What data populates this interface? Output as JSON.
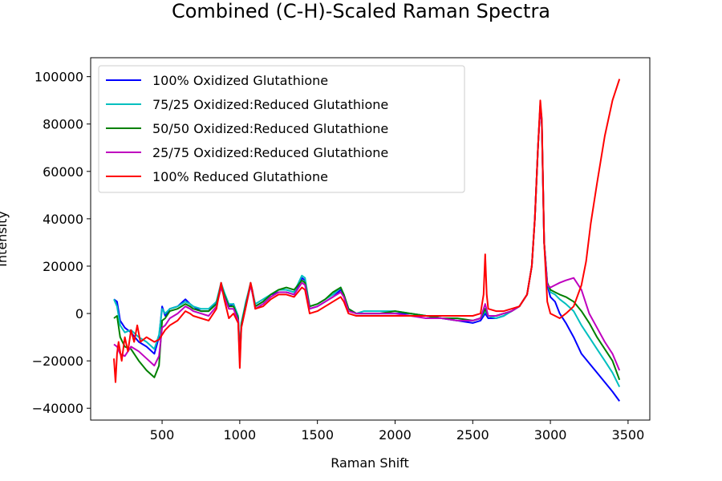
{
  "chart_data": {
    "type": "line",
    "title": "Combined (C-H)-Scaled Raman Spectra",
    "xlabel": "Raman Shift",
    "ylabel": "Intensity",
    "xlim": [
      40,
      3640
    ],
    "ylim": [
      -45000,
      108000
    ],
    "xticks": [
      500,
      1000,
      1500,
      2000,
      2500,
      3000,
      3500
    ],
    "yticks": [
      -40000,
      -20000,
      0,
      20000,
      40000,
      60000,
      80000,
      100000
    ],
    "xtick_labels": [
      "500",
      "1000",
      "1500",
      "2000",
      "2500",
      "3000",
      "3500"
    ],
    "ytick_labels": [
      "−40000",
      "−20000",
      "0",
      "20000",
      "40000",
      "60000",
      "80000",
      "100000"
    ],
    "grid": false,
    "legend_position": "top-left",
    "series": [
      {
        "name": "100% Oxidized Glutathione",
        "color": "#0000ff",
        "x": [
          190,
          210,
          230,
          260,
          300,
          350,
          400,
          450,
          480,
          500,
          520,
          550,
          600,
          650,
          680,
          700,
          750,
          800,
          850,
          880,
          900,
          930,
          960,
          990,
          1000,
          1010,
          1040,
          1070,
          1080,
          1100,
          1150,
          1200,
          1250,
          1300,
          1350,
          1400,
          1420,
          1450,
          1500,
          1550,
          1600,
          1650,
          1670,
          1700,
          1750,
          1800,
          1900,
          2000,
          2100,
          2200,
          2300,
          2400,
          2500,
          2550,
          2580,
          2600,
          2650,
          2700,
          2750,
          2800,
          2850,
          2880,
          2900,
          2920,
          2935,
          2945,
          2960,
          2980,
          3000,
          3030,
          3060,
          3100,
          3150,
          3200,
          3250,
          3300,
          3350,
          3400,
          3445
        ],
        "y": [
          6000,
          5000,
          -3000,
          -6000,
          -8000,
          -12000,
          -14000,
          -17000,
          -10000,
          3000,
          -1000,
          2000,
          3000,
          6000,
          4000,
          3000,
          1000,
          1000,
          5000,
          11000,
          8000,
          3000,
          4000,
          -2000,
          -18000,
          -5000,
          5000,
          12000,
          10000,
          3000,
          5000,
          8000,
          9000,
          9000,
          8000,
          15000,
          14000,
          2000,
          3000,
          5000,
          7000,
          10000,
          8000,
          2000,
          0,
          0,
          0,
          0,
          0,
          -1000,
          -2000,
          -3000,
          -4000,
          -3000,
          0,
          -2000,
          -2000,
          -1000,
          1000,
          3000,
          8000,
          20000,
          40000,
          70000,
          88000,
          80000,
          30000,
          12000,
          7000,
          5000,
          0,
          -4000,
          -10000,
          -17000,
          -21000,
          -25000,
          -29000,
          -33000,
          -37000
        ]
      },
      {
        "name": "75/25 Oxidized:Reduced Glutathione",
        "color": "#00bfbf",
        "x": [
          190,
          210,
          230,
          260,
          300,
          350,
          400,
          450,
          480,
          500,
          520,
          550,
          600,
          650,
          680,
          700,
          750,
          800,
          850,
          880,
          900,
          930,
          960,
          990,
          1000,
          1010,
          1040,
          1070,
          1080,
          1100,
          1150,
          1200,
          1250,
          1300,
          1350,
          1400,
          1420,
          1450,
          1500,
          1550,
          1600,
          1650,
          1670,
          1700,
          1750,
          1800,
          1900,
          2000,
          2100,
          2200,
          2300,
          2400,
          2500,
          2550,
          2580,
          2600,
          2650,
          2700,
          2750,
          2800,
          2850,
          2880,
          2900,
          2920,
          2935,
          2945,
          2960,
          2980,
          3000,
          3030,
          3060,
          3100,
          3150,
          3200,
          3250,
          3300,
          3350,
          3400,
          3445
        ],
        "y": [
          6000,
          3000,
          -5000,
          -8000,
          -7000,
          -10000,
          -12000,
          -15000,
          -9000,
          2000,
          0,
          2000,
          3000,
          5000,
          4000,
          3000,
          2000,
          2000,
          5000,
          13000,
          9000,
          4000,
          4000,
          -1000,
          -17000,
          -4000,
          5000,
          13000,
          10000,
          4000,
          6000,
          8000,
          10000,
          10000,
          9000,
          16000,
          15000,
          3000,
          4000,
          6000,
          8000,
          11000,
          8000,
          2000,
          0,
          1000,
          1000,
          1000,
          0,
          -1000,
          -2000,
          -3000,
          -3000,
          -2000,
          1000,
          -1000,
          -2000,
          -1000,
          1000,
          3000,
          8000,
          20000,
          40000,
          70000,
          88000,
          82000,
          30000,
          13000,
          9000,
          8000,
          6000,
          4000,
          1000,
          -5000,
          -10000,
          -15000,
          -20000,
          -25000,
          -31000
        ]
      },
      {
        "name": "50/50 Oxidized:Reduced Glutathione",
        "color": "#008000",
        "x": [
          190,
          210,
          230,
          260,
          300,
          350,
          400,
          450,
          480,
          500,
          520,
          550,
          600,
          650,
          680,
          700,
          750,
          800,
          850,
          880,
          900,
          930,
          960,
          990,
          1000,
          1010,
          1040,
          1070,
          1080,
          1100,
          1150,
          1200,
          1250,
          1300,
          1350,
          1400,
          1420,
          1450,
          1500,
          1550,
          1600,
          1650,
          1670,
          1700,
          1750,
          1800,
          1900,
          2000,
          2100,
          2200,
          2300,
          2400,
          2500,
          2550,
          2580,
          2600,
          2650,
          2700,
          2750,
          2800,
          2850,
          2880,
          2900,
          2920,
          2935,
          2945,
          2960,
          2980,
          3000,
          3030,
          3060,
          3100,
          3150,
          3200,
          3250,
          3300,
          3350,
          3400,
          3445
        ],
        "y": [
          -2000,
          -1000,
          -10000,
          -14000,
          -15000,
          -20000,
          -24000,
          -27000,
          -22000,
          -3000,
          -2000,
          1000,
          2000,
          4000,
          3000,
          2000,
          1000,
          1000,
          4000,
          12000,
          8000,
          3000,
          3000,
          -2000,
          -19000,
          -5000,
          4000,
          12000,
          9000,
          3000,
          5000,
          8000,
          10000,
          11000,
          10000,
          14000,
          13000,
          3000,
          4000,
          6000,
          9000,
          11000,
          8000,
          2000,
          0,
          0,
          0,
          1000,
          0,
          -1000,
          -2000,
          -2000,
          -3000,
          -2000,
          2000,
          -1000,
          -1000,
          0,
          1000,
          3000,
          8000,
          20000,
          40000,
          70000,
          88000,
          80000,
          30000,
          13000,
          10000,
          9000,
          8000,
          7000,
          5000,
          1000,
          -4000,
          -10000,
          -15000,
          -20000,
          -28000
        ]
      },
      {
        "name": "25/75 Oxidized:Reduced Glutathione",
        "color": "#bf00bf",
        "x": [
          190,
          210,
          230,
          260,
          300,
          350,
          400,
          450,
          480,
          500,
          520,
          550,
          600,
          650,
          680,
          700,
          750,
          800,
          850,
          880,
          900,
          930,
          960,
          990,
          1000,
          1010,
          1040,
          1070,
          1080,
          1100,
          1150,
          1200,
          1250,
          1300,
          1350,
          1400,
          1420,
          1450,
          1500,
          1550,
          1600,
          1650,
          1670,
          1700,
          1750,
          1800,
          1900,
          2000,
          2100,
          2200,
          2300,
          2400,
          2500,
          2550,
          2580,
          2600,
          2650,
          2700,
          2750,
          2800,
          2850,
          2880,
          2900,
          2920,
          2935,
          2945,
          2960,
          2980,
          3000,
          3030,
          3060,
          3100,
          3150,
          3200,
          3250,
          3300,
          3350,
          3400,
          3445
        ],
        "y": [
          -13000,
          -14000,
          -17000,
          -18000,
          -14000,
          -16000,
          -19000,
          -22000,
          -18000,
          -6000,
          -5000,
          -2000,
          0,
          3000,
          2000,
          1000,
          0,
          -1000,
          3000,
          11000,
          7000,
          2000,
          2000,
          -3000,
          -20000,
          -6000,
          3000,
          12000,
          9000,
          2000,
          4000,
          7000,
          9000,
          9000,
          8000,
          13000,
          12000,
          2000,
          3000,
          5000,
          7000,
          9000,
          7000,
          1000,
          0,
          0,
          0,
          0,
          -1000,
          -2000,
          -2000,
          -3000,
          -3000,
          -2000,
          4000,
          -1000,
          -1000,
          0,
          1000,
          3000,
          8000,
          20000,
          40000,
          70000,
          88000,
          80000,
          30000,
          12000,
          11000,
          12000,
          13000,
          14000,
          15000,
          10000,
          0,
          -6000,
          -12000,
          -17000,
          -24000
        ]
      },
      {
        "name": "100% Reduced Glutathione",
        "color": "#ff0000",
        "x": [
          190,
          200,
          210,
          220,
          240,
          260,
          280,
          300,
          320,
          340,
          360,
          400,
          450,
          480,
          500,
          520,
          550,
          600,
          650,
          680,
          700,
          750,
          800,
          850,
          880,
          900,
          930,
          960,
          990,
          1000,
          1010,
          1040,
          1070,
          1080,
          1100,
          1150,
          1200,
          1250,
          1300,
          1350,
          1400,
          1420,
          1450,
          1500,
          1550,
          1600,
          1650,
          1670,
          1700,
          1750,
          1800,
          1900,
          2000,
          2100,
          2200,
          2300,
          2400,
          2500,
          2550,
          2570,
          2580,
          2590,
          2600,
          2650,
          2700,
          2750,
          2800,
          2850,
          2880,
          2900,
          2920,
          2935,
          2945,
          2960,
          2980,
          3000,
          3030,
          3060,
          3100,
          3150,
          3200,
          3230,
          3260,
          3300,
          3350,
          3400,
          3445
        ],
        "y": [
          -19000,
          -29000,
          -17000,
          -12000,
          -20000,
          -10000,
          -16000,
          -7000,
          -12000,
          -5000,
          -12000,
          -10000,
          -12000,
          -11000,
          -9000,
          -7000,
          -5000,
          -3000,
          1000,
          0,
          -1000,
          -2000,
          -3000,
          2000,
          13000,
          6000,
          -2000,
          0,
          -4000,
          -23000,
          -6000,
          3000,
          13000,
          10000,
          2000,
          3000,
          6000,
          8000,
          8000,
          7000,
          11000,
          10000,
          0,
          1000,
          3000,
          5000,
          7000,
          5000,
          0,
          -1000,
          -1000,
          -1000,
          -1000,
          -1000,
          -1000,
          -1000,
          -1000,
          -1000,
          0,
          8000,
          25000,
          8000,
          2000,
          1000,
          1000,
          2000,
          3000,
          8000,
          20000,
          40000,
          70000,
          90000,
          82000,
          30000,
          5000,
          0,
          -1000,
          -2000,
          0,
          3000,
          12000,
          22000,
          38000,
          55000,
          75000,
          90000,
          99000
        ]
      }
    ]
  }
}
